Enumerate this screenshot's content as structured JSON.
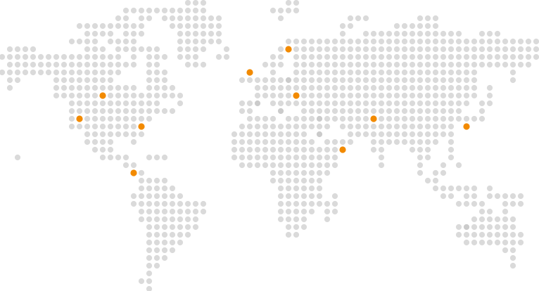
{
  "map": {
    "style": "dotted-world-map",
    "land_color": "#dadada",
    "land_shade_color": "#cbcbcb",
    "marker_color": "#f28a00",
    "background_color": "#ffffff"
  }
}
